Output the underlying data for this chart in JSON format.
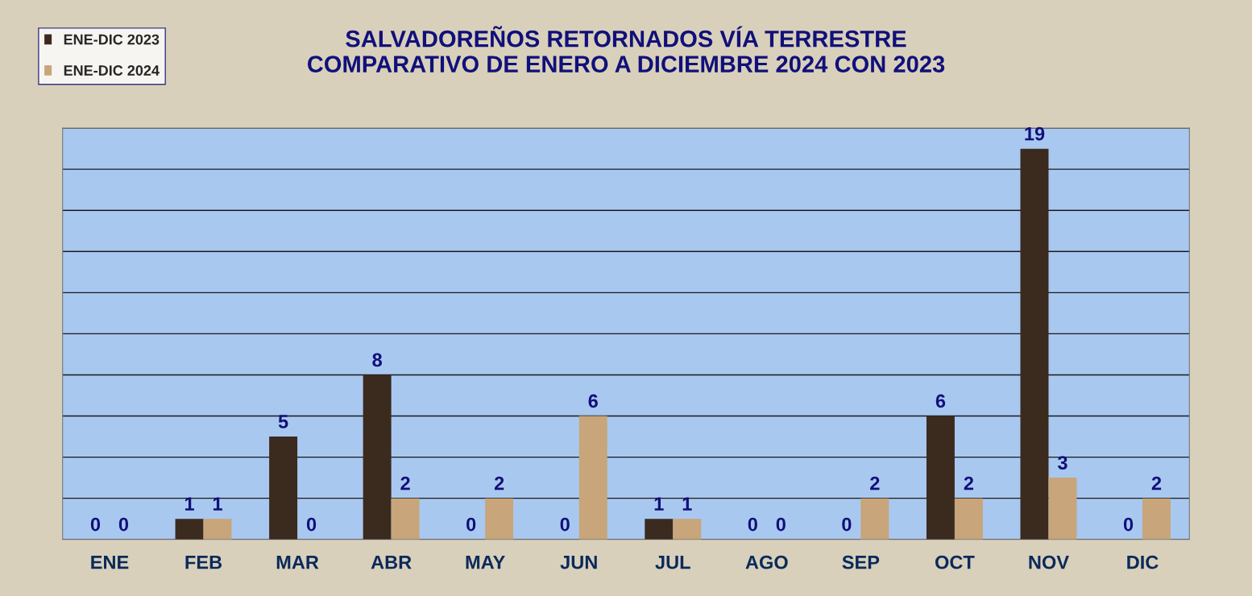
{
  "chart_data": {
    "type": "bar",
    "title": "SALVADOREÑOS RETORNADOS VÍA TERRESTRE\nCOMPARATIVO DE ENERO A DICIEMBRE 2024 CON 2023",
    "categories": [
      "ENE",
      "FEB",
      "MAR",
      "ABR",
      "MAY",
      "JUN",
      "JUL",
      "AGO",
      "SEP",
      "OCT",
      "NOV",
      "DIC"
    ],
    "series": [
      {
        "name": "ENE-DIC 2023",
        "color": "#3b2a1e",
        "values": [
          0,
          1,
          5,
          8,
          0,
          0,
          1,
          0,
          0,
          6,
          19,
          0
        ]
      },
      {
        "name": "ENE-DIC 2024",
        "color": "#c8a57a",
        "values": [
          0,
          1,
          0,
          2,
          2,
          6,
          1,
          0,
          2,
          2,
          3,
          2
        ]
      }
    ],
    "ylim": [
      0,
      20
    ],
    "yticks": [
      {
        "value": 0,
        "label": null
      },
      {
        "value": 2,
        "label": null
      },
      {
        "value": 4,
        "label": null
      },
      {
        "value": 6,
        "label": null
      },
      {
        "value": 8,
        "label": null
      },
      {
        "value": 10,
        "label": null
      },
      {
        "value": 12,
        "label": null
      },
      {
        "value": 14,
        "label": null
      },
      {
        "value": 16,
        "label": null
      },
      {
        "value": 18,
        "label": null
      },
      {
        "value": 20,
        "label": null
      }
    ],
    "grid": "y",
    "legend": "top left",
    "data_labels": true,
    "tick_labels": "x"
  }
}
